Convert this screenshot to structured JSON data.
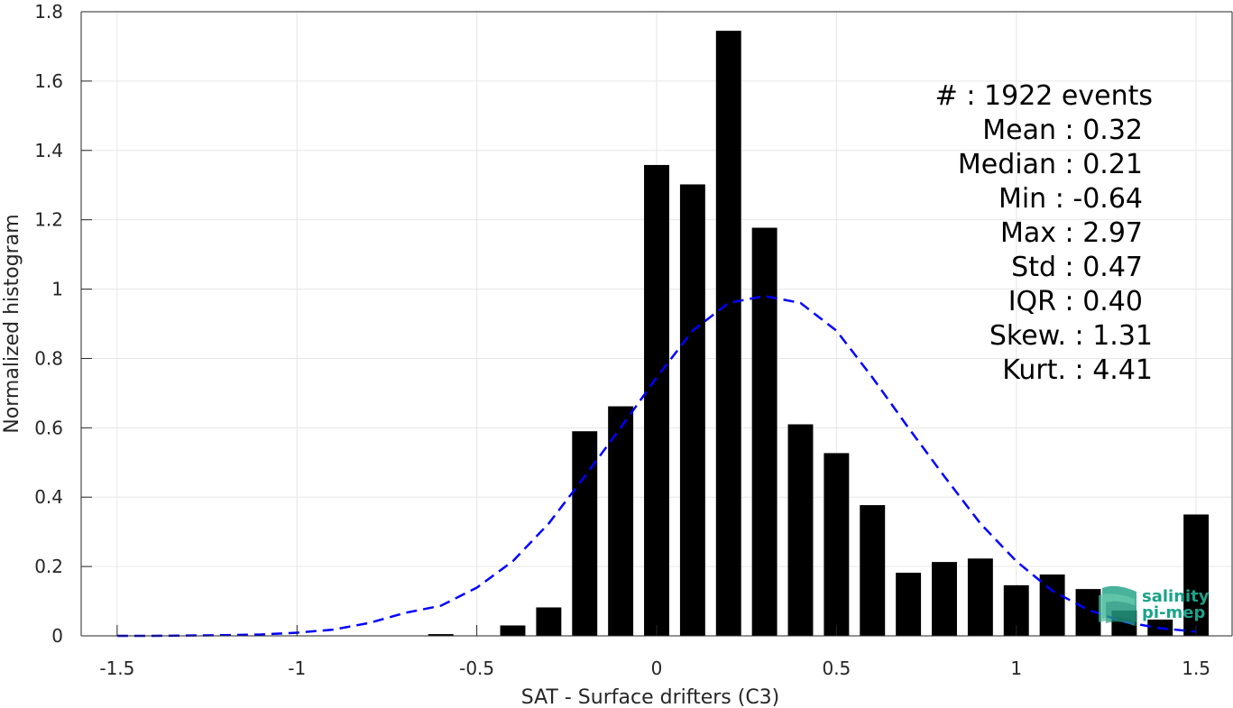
{
  "chart_data": {
    "type": "bar",
    "xlabel": "SAT - Surface drifters (C3)",
    "ylabel": "Normalized histogram",
    "xlim": [
      -1.6,
      1.6
    ],
    "ylim": [
      0,
      1.8
    ],
    "grid": true,
    "x_ticks": [
      "-1.5",
      "-1",
      "-0.5",
      "0",
      "0.5",
      "1",
      "1.5"
    ],
    "y_ticks": [
      "0",
      "0.2",
      "0.4",
      "0.6",
      "0.8",
      "1",
      "1.2",
      "1.4",
      "1.6",
      "1.8"
    ],
    "bar_width": 0.07,
    "bar_color": "#000000",
    "bars": [
      {
        "x": -0.6,
        "y": 0.005
      },
      {
        "x": -0.4,
        "y": 0.03
      },
      {
        "x": -0.3,
        "y": 0.082
      },
      {
        "x": -0.2,
        "y": 0.59
      },
      {
        "x": -0.1,
        "y": 0.662
      },
      {
        "x": 0.0,
        "y": 1.358
      },
      {
        "x": 0.1,
        "y": 1.302
      },
      {
        "x": 0.2,
        "y": 1.745
      },
      {
        "x": 0.3,
        "y": 1.177
      },
      {
        "x": 0.4,
        "y": 0.61
      },
      {
        "x": 0.5,
        "y": 0.527
      },
      {
        "x": 0.6,
        "y": 0.377
      },
      {
        "x": 0.7,
        "y": 0.182
      },
      {
        "x": 0.8,
        "y": 0.213
      },
      {
        "x": 0.9,
        "y": 0.223
      },
      {
        "x": 1.0,
        "y": 0.146
      },
      {
        "x": 1.1,
        "y": 0.177
      },
      {
        "x": 1.2,
        "y": 0.135
      },
      {
        "x": 1.3,
        "y": 0.073
      },
      {
        "x": 1.4,
        "y": 0.047
      },
      {
        "x": 1.5,
        "y": 0.35
      }
    ],
    "fit_curve": {
      "color": "#0000ff",
      "style": "dashed",
      "x": [
        -1.5,
        -1.4,
        -1.3,
        -1.2,
        -1.1,
        -1.0,
        -0.9,
        -0.8,
        -0.7,
        -0.6,
        -0.5,
        -0.4,
        -0.3,
        -0.2,
        -0.1,
        0.0,
        0.1,
        0.2,
        0.3,
        0.4,
        0.5,
        0.6,
        0.7,
        0.8,
        0.9,
        1.0,
        1.1,
        1.2,
        1.3,
        1.4,
        1.5
      ],
      "y": [
        0.0,
        0.0,
        0.001,
        0.002,
        0.004,
        0.009,
        0.018,
        0.037,
        0.066,
        0.087,
        0.139,
        0.215,
        0.324,
        0.46,
        0.6,
        0.745,
        0.88,
        0.96,
        0.98,
        0.96,
        0.88,
        0.745,
        0.6,
        0.46,
        0.324,
        0.215,
        0.13,
        0.075,
        0.04,
        0.022,
        0.012
      ]
    },
    "stats": [
      {
        "label": "#  : 1922 events"
      },
      {
        "label": "Mean : 0.32"
      },
      {
        "label": "Median : 0.21"
      },
      {
        "label": "Min : -0.64"
      },
      {
        "label": "Max : 2.97"
      },
      {
        "label": "Std : 0.47"
      },
      {
        "label": "IQR : 0.40"
      },
      {
        "label": "Skew. : 1.31"
      },
      {
        "label": "Kurt. : 4.41"
      }
    ]
  },
  "logo": {
    "line1": "salinity",
    "line2": "pi-mep",
    "color": "#1aa38b"
  }
}
